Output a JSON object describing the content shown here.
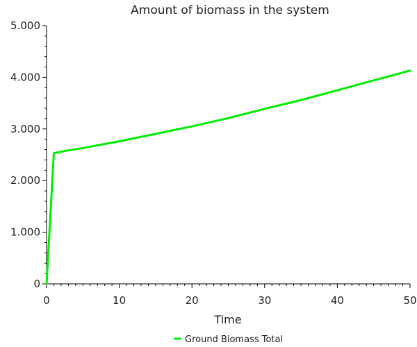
{
  "chart_data": {
    "type": "line",
    "title": "Amount of biomass in the system",
    "xlabel": "Time",
    "ylabel": "",
    "xlim": [
      0,
      50
    ],
    "ylim": [
      0,
      5000
    ],
    "xticks": [
      0,
      10,
      20,
      30,
      40,
      50
    ],
    "yticks": [
      0,
      1000,
      2000,
      3000,
      4000,
      5000
    ],
    "xtick_labels": [
      "0",
      "10",
      "20",
      "30",
      "40",
      "50"
    ],
    "ytick_labels": [
      "0",
      "1.000",
      "2.000",
      "3.000",
      "4.000",
      "5.000"
    ],
    "grid": false,
    "legend_position": "bottom-center",
    "series": [
      {
        "name": "Ground Biomass Total",
        "color": "#00ee00",
        "x": [
          0,
          1,
          3,
          5,
          10,
          15,
          20,
          25,
          30,
          35,
          40,
          45,
          50
        ],
        "y": [
          0,
          2530,
          2585,
          2630,
          2760,
          2905,
          3050,
          3210,
          3390,
          3560,
          3750,
          3940,
          4130
        ]
      }
    ]
  }
}
